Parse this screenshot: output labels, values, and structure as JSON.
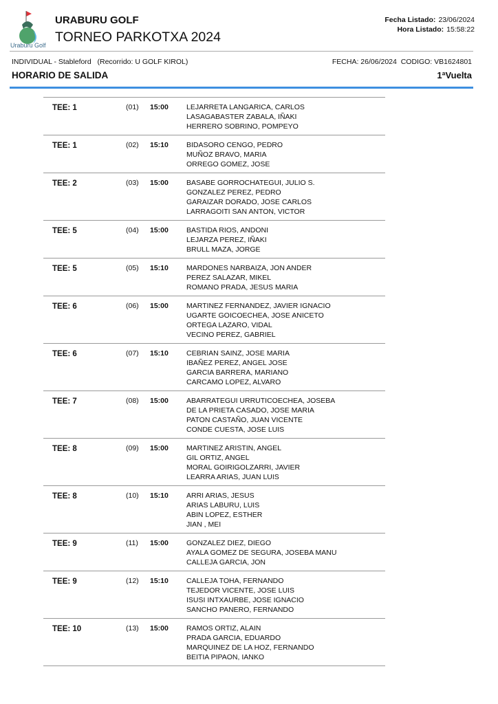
{
  "header": {
    "logo_text": "Uraburu Golf",
    "club": "URABURU GOLF",
    "tournament": "TORNEO PARKOTXA 2024",
    "fecha_listado_label": "Fecha Listado:",
    "fecha_listado": "23/06/2024",
    "hora_listado_label": "Hora Listado:",
    "hora_listado": "15:58:22",
    "modalidad": "INDIVIDUAL - Stableford   (Recorrido: U GOLF KIROL)",
    "fecha_codigo": "FECHA: 26/06/2024  CODIGO: VB1624801",
    "section_title": "HORARIO DE SALIDA",
    "vuelta": "1ªVuelta",
    "accent_color": "#3d8fe0"
  },
  "groups": [
    {
      "tee": "TEE: 1",
      "num": "(01)",
      "time": "15:00",
      "players": [
        "LEJARRETA LANGARICA, CARLOS",
        "LASAGABASTER ZABALA, IÑAKI",
        "HERRERO SOBRINO, POMPEYO"
      ]
    },
    {
      "tee": "TEE: 1",
      "num": "(02)",
      "time": "15:10",
      "players": [
        "BIDASORO CENGO, PEDRO",
        "MUÑOZ BRAVO, MARIA",
        "ORREGO GOMEZ, JOSE"
      ]
    },
    {
      "tee": "TEE: 2",
      "num": "(03)",
      "time": "15:00",
      "players": [
        "BASABE GORROCHATEGUI, JULIO S.",
        "GONZALEZ PEREZ, PEDRO",
        "GARAIZAR DORADO, JOSE CARLOS",
        "LARRAGOITI SAN ANTON, VICTOR"
      ]
    },
    {
      "tee": "TEE: 5",
      "num": "(04)",
      "time": "15:00",
      "players": [
        "BASTIDA RIOS, ANDONI",
        "LEJARZA PEREZ, IÑAKI",
        "BRULL MAZA, JORGE"
      ]
    },
    {
      "tee": "TEE: 5",
      "num": "(05)",
      "time": "15:10",
      "players": [
        "MARDONES NARBAIZA, JON ANDER",
        "PEREZ SALAZAR, MIKEL",
        "ROMANO PRADA, JESUS MARIA"
      ]
    },
    {
      "tee": "TEE: 6",
      "num": "(06)",
      "time": "15:00",
      "players": [
        "MARTINEZ FERNANDEZ, JAVIER IGNACIO",
        "UGARTE GOICOECHEA, JOSE ANICETO",
        "ORTEGA LAZARO, VIDAL",
        "VECINO PEREZ, GABRIEL"
      ]
    },
    {
      "tee": "TEE: 6",
      "num": "(07)",
      "time": "15:10",
      "players": [
        "CEBRIAN SAINZ, JOSE MARIA",
        "IBAÑEZ PEREZ, ANGEL JOSE",
        "GARCIA BARRERA, MARIANO",
        "CARCAMO LOPEZ, ALVARO"
      ]
    },
    {
      "tee": "TEE: 7",
      "num": "(08)",
      "time": "15:00",
      "players": [
        "ABARRATEGUI URRUTICOECHEA, JOSEBA",
        "DE LA PRIETA CASADO, JOSE MARIA",
        "PATON CASTAÑO, JUAN VICENTE",
        "CONDE CUESTA, JOSE LUIS"
      ]
    },
    {
      "tee": "TEE: 8",
      "num": "(09)",
      "time": "15:00",
      "players": [
        "MARTINEZ ARISTIN, ANGEL",
        "GIL ORTIZ, ANGEL",
        "MORAL GOIRIGOLZARRI, JAVIER",
        "LEARRA ARIAS, JUAN LUIS"
      ]
    },
    {
      "tee": "TEE: 8",
      "num": "(10)",
      "time": "15:10",
      "players": [
        "ARRI ARIAS, JESUS",
        "ARIAS LABURU, LUIS",
        "ABIN LOPEZ, ESTHER",
        "JIAN , MEI"
      ]
    },
    {
      "tee": "TEE: 9",
      "num": "(11)",
      "time": "15:00",
      "players": [
        "GONZALEZ DIEZ, DIEGO",
        "AYALA GOMEZ DE SEGURA, JOSEBA MANU",
        "CALLEJA GARCIA, JON"
      ]
    },
    {
      "tee": "TEE: 9",
      "num": "(12)",
      "time": "15:10",
      "players": [
        "CALLEJA TOHA, FERNANDO",
        "TEJEDOR VICENTE, JOSE LUIS",
        "ISUSI INTXAURBE, JOSE IGNACIO",
        "SANCHO PANERO, FERNANDO"
      ]
    },
    {
      "tee": "TEE: 10",
      "num": "(13)",
      "time": "15:00",
      "players": [
        "RAMOS ORTIZ, ALAIN",
        "PRADA GARCIA, EDUARDO",
        "MARQUINEZ DE LA HOZ, FERNANDO",
        "BEITIA PIPAON, IANKO"
      ]
    }
  ]
}
